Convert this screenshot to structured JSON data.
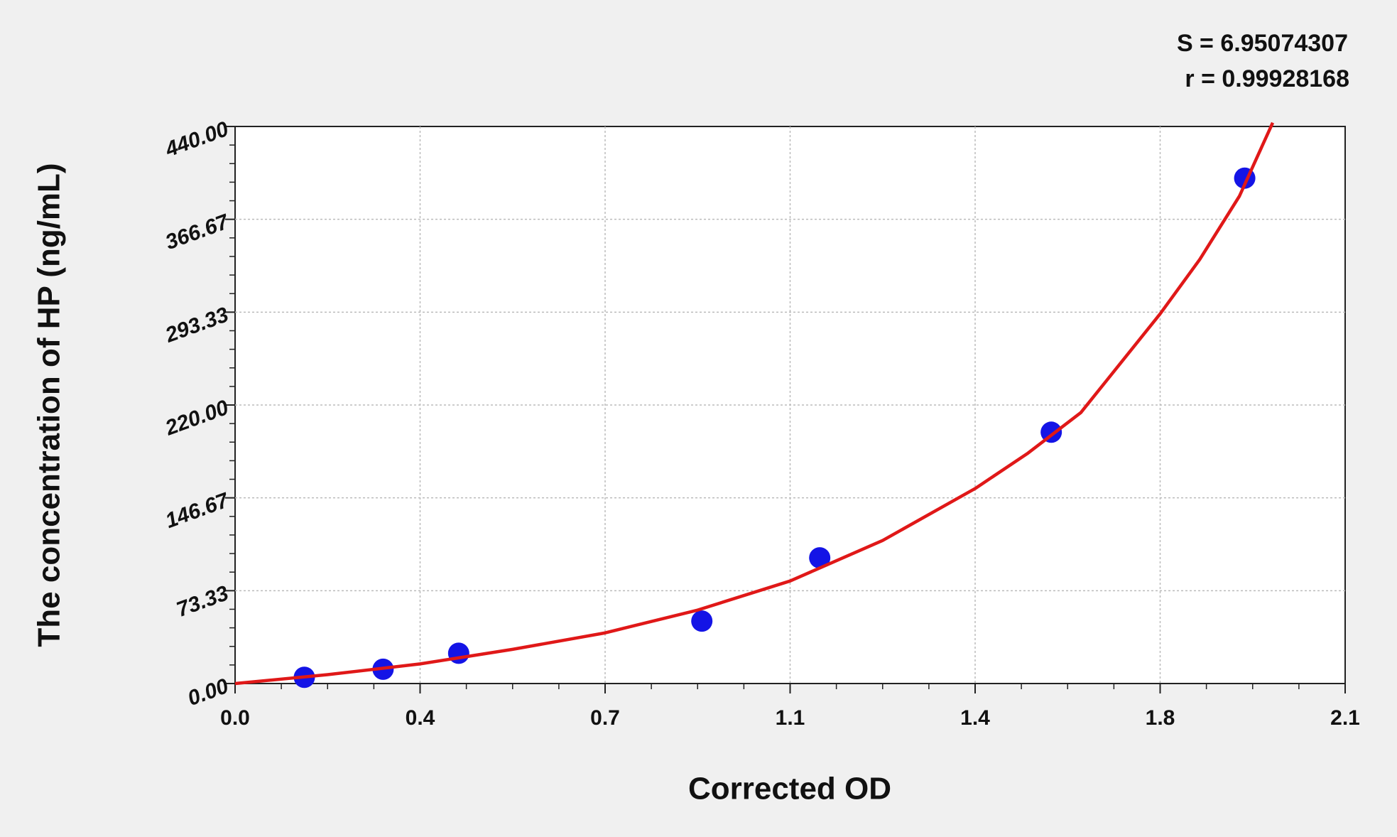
{
  "chart_data": {
    "type": "scatter",
    "x_label": "Corrected OD",
    "y_label": "The concentration of HP (ng/mL)",
    "annotations": [
      "S = 6.95074307",
      "r = 0.99928168"
    ],
    "xlim": [
      0,
      2.1
    ],
    "xticks": [
      {
        "value": 0,
        "label": "0.0"
      },
      {
        "value": 0.35,
        "label": "0.4"
      },
      0.7,
      {
        "value": 1.05,
        "label": "1.1"
      },
      1.4,
      {
        "value": 1.75,
        "label": "1.8"
      },
      2.1
    ],
    "ylim": [
      0,
      440
    ],
    "yticks": [
      {
        "value": 0,
        "label": "0.00"
      },
      73.33,
      146.67,
      {
        "value": 220,
        "label": "220.00"
      },
      293.33,
      366.67,
      {
        "value": 440,
        "label": "440.00"
      }
    ],
    "grid": true,
    "series": [
      {
        "type": "scatter",
        "color": "#1414e6",
        "x": [
          0.131,
          0.28,
          0.423,
          0.883,
          1.106,
          1.544,
          1.91
        ],
        "values": [
          4.9,
          11.3,
          23.9,
          49.3,
          99.3,
          198.5,
          399.2
        ]
      },
      {
        "type": "line",
        "color": "#e01818",
        "x": [
          0,
          0.175,
          0.35,
          0.525,
          0.7,
          0.875,
          1.05,
          1.225,
          1.4,
          1.5,
          1.6,
          1.65,
          1.75,
          1.825,
          1.9,
          1.963
        ],
        "values": [
          0,
          7,
          15.5,
          27,
          40,
          58,
          81,
          113,
          154,
          182,
          214,
          240,
          292,
          335,
          385,
          443
        ]
      }
    ]
  }
}
